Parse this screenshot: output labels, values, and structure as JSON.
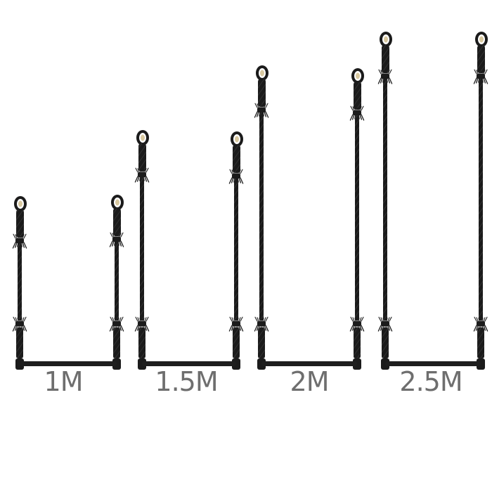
{
  "image": {
    "background_color": "#ffffff",
    "rope_color": "#1b1b1b",
    "bar_color": "#1e1e1e",
    "label_color": "#6e6e6e"
  },
  "trapezes": [
    {
      "label": "1M"
    },
    {
      "label": "1.5M"
    },
    {
      "label": "2M"
    },
    {
      "label": "2.5M"
    }
  ]
}
